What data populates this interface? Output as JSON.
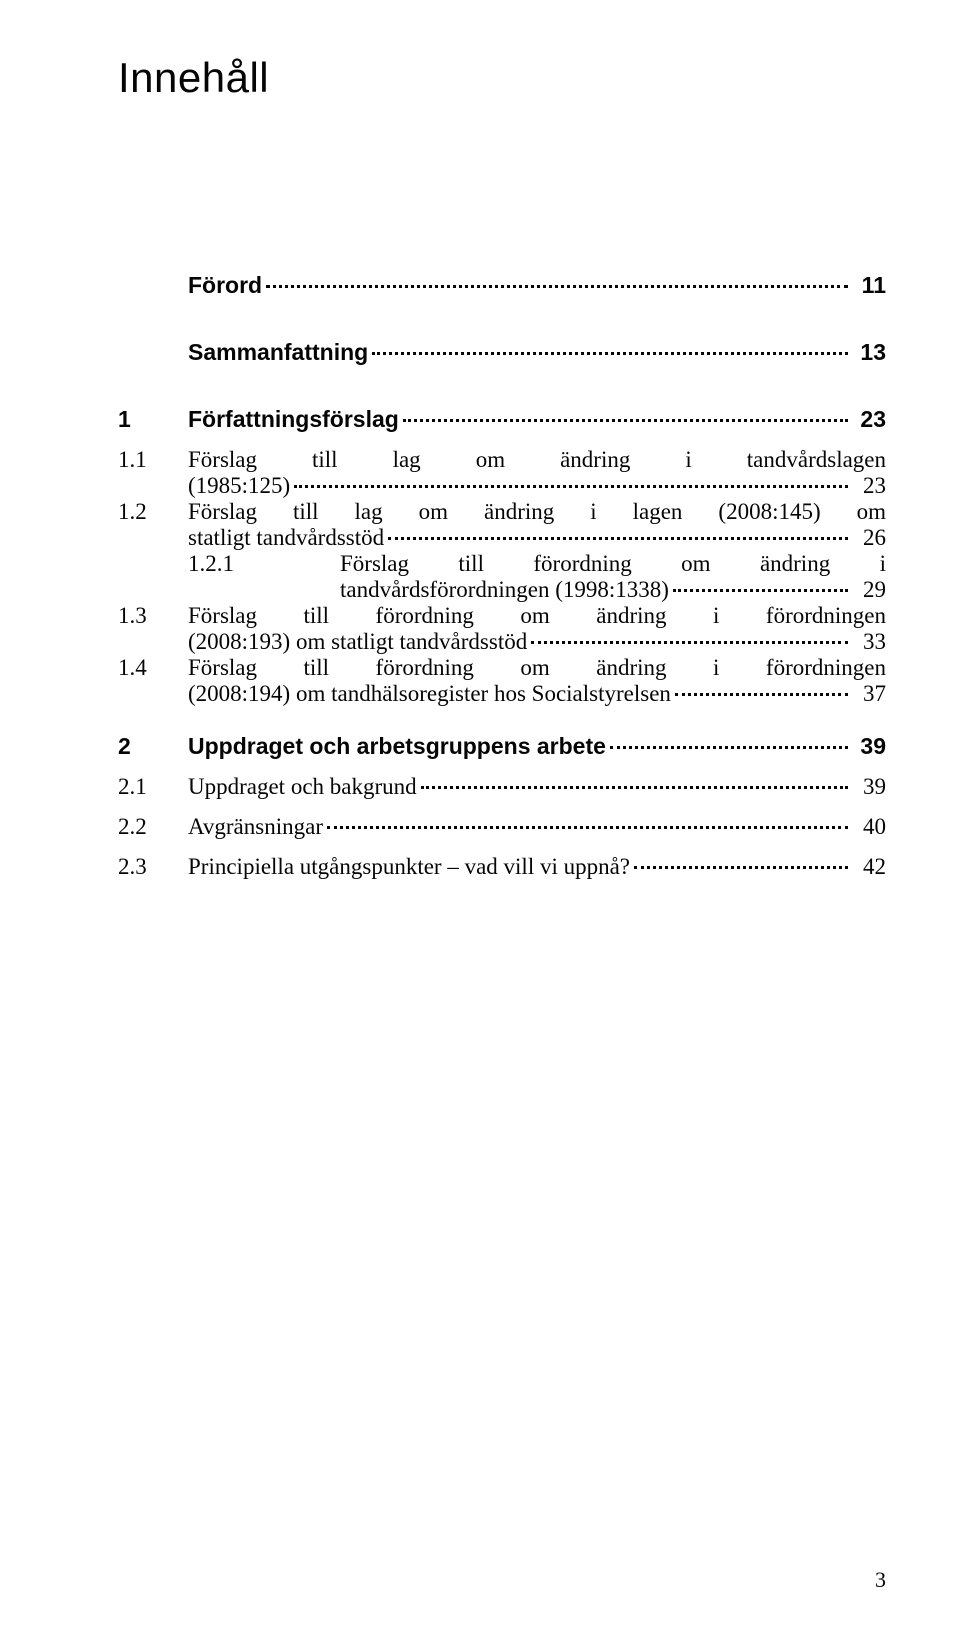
{
  "heading": "Innehåll",
  "footer_page": "3",
  "toc": {
    "forord": {
      "title": "Förord",
      "page": "11"
    },
    "sammanfattning": {
      "title": "Sammanfattning",
      "page": "13"
    },
    "s1": {
      "num": "1",
      "title": "Författningsförslag",
      "page": "23"
    },
    "s1_1": {
      "num": "1.1",
      "l1": "Förslag till lag om ändring i tandvårdslagen",
      "l2": "(1985:125)",
      "page": "23"
    },
    "s1_2": {
      "num": "1.2",
      "l1": "Förslag till lag om ändring i lagen (2008:145) om",
      "l2": "statligt tandvårdsstöd",
      "page": "26"
    },
    "s1_2_1": {
      "num": "1.2.1",
      "l1": "Förslag till förordning om ändring i",
      "l2": "tandvårdsförordningen (1998:1338)",
      "page": "29"
    },
    "s1_3": {
      "num": "1.3",
      "l1": "Förslag till förordning om ändring i förordningen",
      "l2": "(2008:193) om statligt tandvårdsstöd",
      "page": "33"
    },
    "s1_4": {
      "num": "1.4",
      "l1": "Förslag till förordning om ändring i förordningen",
      "l2": "(2008:194) om tandhälsoregister hos Socialstyrelsen",
      "page": "37"
    },
    "s2": {
      "num": "2",
      "title": "Uppdraget och arbetsgruppens arbete",
      "page": "39"
    },
    "s2_1": {
      "num": "2.1",
      "title": "Uppdraget och bakgrund",
      "page": "39"
    },
    "s2_2": {
      "num": "2.2",
      "title": "Avgränsningar",
      "page": "40"
    },
    "s2_3": {
      "num": "2.3",
      "title": "Principiella utgångspunkter – vad vill vi uppnå?",
      "page": "42"
    }
  },
  "colors": {
    "text": "#050505",
    "background": "#ffffff",
    "leader": "#050505"
  },
  "typography": {
    "heading_family": "Verdana",
    "heading_size_pt": 32,
    "body_family": "Georgia",
    "body_size_pt": 17,
    "bold_family": "Verdana"
  }
}
